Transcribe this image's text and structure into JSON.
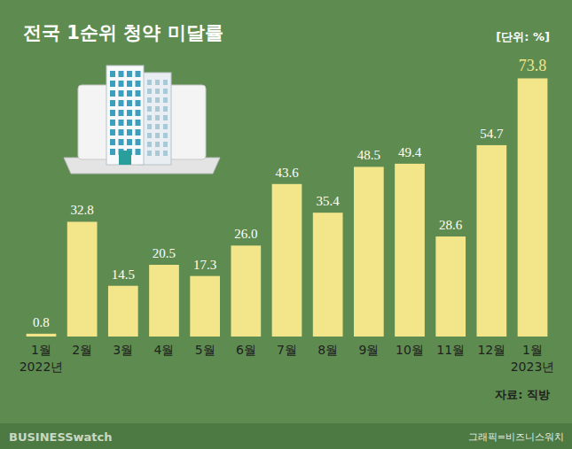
{
  "chart_data": {
    "type": "bar",
    "title": "전국 1순위 청약 미달률",
    "subtitle": "[단위: %]",
    "annotations": [
      "자료: 직방",
      "BUSINESSwatch",
      "그래픽=비즈니스워치"
    ],
    "categories": [
      "1월\n2022년",
      "2월",
      "3월",
      "4월",
      "5월",
      "6월",
      "7월",
      "8월",
      "9월",
      "10월",
      "11월",
      "12월",
      "1월\n2023년"
    ],
    "values": [
      0.8,
      32.8,
      14.5,
      20.5,
      17.3,
      26.0,
      43.6,
      35.4,
      48.5,
      49.4,
      28.6,
      54.7,
      73.8
    ],
    "value_labels": [
      "0.8",
      "32.8",
      "14.5",
      "20.5",
      "17.3",
      "26.0",
      "43.6",
      "35.4",
      "48.5",
      "49.4",
      "28.6",
      "54.7",
      "73.8"
    ],
    "color": "#f3e58a",
    "ylim": [
      0,
      80
    ],
    "grid": false,
    "data_labels": true,
    "tick_labels": "x"
  }
}
